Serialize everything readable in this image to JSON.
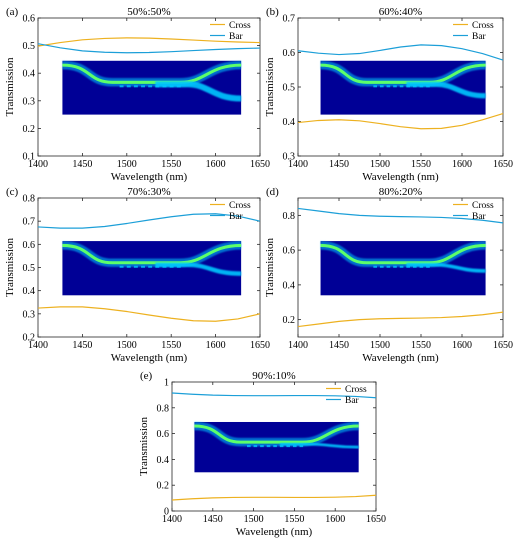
{
  "colors": {
    "cross": "#edb120",
    "bar": "#1c9fd8",
    "inset_bg": "#000096",
    "inset_mid": "#00c8ff",
    "inset_core": "#5cff6a"
  },
  "chart_data": [
    {
      "panel": "(a)",
      "title": "50%:50%",
      "type": "line",
      "xlabel": "Wavelength (nm)",
      "ylabel": "Transmission",
      "xlim": [
        1400,
        1650
      ],
      "ylim": [
        0.1,
        0.6
      ],
      "xticks": [
        1400,
        1450,
        1500,
        1550,
        1600,
        1650
      ],
      "yticks": [
        0.1,
        0.2,
        0.3,
        0.4,
        0.5,
        0.6
      ],
      "legend_position": "top-right",
      "grid": false,
      "x": [
        1400,
        1425,
        1450,
        1475,
        1500,
        1525,
        1550,
        1575,
        1600,
        1625,
        1650
      ],
      "series": [
        {
          "name": "Cross",
          "color_key": "cross",
          "values": [
            0.498,
            0.511,
            0.521,
            0.526,
            0.528,
            0.527,
            0.524,
            0.52,
            0.516,
            0.513,
            0.511
          ]
        },
        {
          "name": "Bar",
          "color_key": "bar",
          "values": [
            0.507,
            0.492,
            0.481,
            0.476,
            0.474,
            0.475,
            0.478,
            0.482,
            0.486,
            0.489,
            0.491
          ]
        }
      ],
      "inset": {
        "split": 0.5
      }
    },
    {
      "panel": "(b)",
      "title": "60%:40%",
      "type": "line",
      "xlabel": "Wavelength (nm)",
      "ylabel": "Transmission",
      "xlim": [
        1400,
        1650
      ],
      "ylim": [
        0.3,
        0.7
      ],
      "xticks": [
        1400,
        1450,
        1500,
        1550,
        1600,
        1650
      ],
      "yticks": [
        0.3,
        0.4,
        0.5,
        0.6,
        0.7
      ],
      "legend_position": "top-right",
      "grid": false,
      "x": [
        1400,
        1425,
        1450,
        1475,
        1500,
        1525,
        1550,
        1575,
        1600,
        1625,
        1650
      ],
      "series": [
        {
          "name": "Cross",
          "color_key": "cross",
          "values": [
            0.397,
            0.403,
            0.405,
            0.402,
            0.394,
            0.385,
            0.379,
            0.38,
            0.389,
            0.405,
            0.423
          ]
        },
        {
          "name": "Bar",
          "color_key": "bar",
          "values": [
            0.605,
            0.598,
            0.594,
            0.597,
            0.606,
            0.616,
            0.622,
            0.62,
            0.611,
            0.597,
            0.578
          ]
        }
      ],
      "inset": {
        "split": 0.6
      }
    },
    {
      "panel": "(c)",
      "title": "70%:30%",
      "type": "line",
      "xlabel": "Wavelength (nm)",
      "ylabel": "Transmission",
      "xlim": [
        1400,
        1650
      ],
      "ylim": [
        0.2,
        0.8
      ],
      "xticks": [
        1400,
        1450,
        1500,
        1550,
        1600,
        1650
      ],
      "yticks": [
        0.2,
        0.3,
        0.4,
        0.5,
        0.6,
        0.7,
        0.8
      ],
      "legend_position": "top-right",
      "grid": false,
      "x": [
        1400,
        1425,
        1450,
        1475,
        1500,
        1525,
        1550,
        1575,
        1600,
        1625,
        1650
      ],
      "series": [
        {
          "name": "Cross",
          "color_key": "cross",
          "values": [
            0.325,
            0.33,
            0.33,
            0.322,
            0.31,
            0.295,
            0.281,
            0.27,
            0.268,
            0.278,
            0.3
          ]
        },
        {
          "name": "Bar",
          "color_key": "bar",
          "values": [
            0.675,
            0.67,
            0.67,
            0.677,
            0.69,
            0.705,
            0.719,
            0.73,
            0.732,
            0.722,
            0.7
          ]
        }
      ],
      "inset": {
        "split": 0.7
      }
    },
    {
      "panel": "(d)",
      "title": "80%:20%",
      "type": "line",
      "xlabel": "Wavelength (nm)",
      "ylabel": "Transmission",
      "xlim": [
        1400,
        1650
      ],
      "ylim": [
        0.1,
        0.9
      ],
      "xticks": [
        1400,
        1450,
        1500,
        1550,
        1600,
        1650
      ],
      "yticks": [
        0.2,
        0.4,
        0.6,
        0.8
      ],
      "legend_position": "top-right",
      "grid": false,
      "x": [
        1400,
        1425,
        1450,
        1475,
        1500,
        1525,
        1550,
        1575,
        1600,
        1625,
        1650
      ],
      "series": [
        {
          "name": "Cross",
          "color_key": "cross",
          "values": [
            0.16,
            0.175,
            0.19,
            0.2,
            0.205,
            0.207,
            0.209,
            0.212,
            0.218,
            0.228,
            0.243
          ]
        },
        {
          "name": "Bar",
          "color_key": "bar",
          "values": [
            0.84,
            0.825,
            0.81,
            0.8,
            0.795,
            0.793,
            0.791,
            0.788,
            0.782,
            0.772,
            0.757
          ]
        }
      ],
      "inset": {
        "split": 0.8
      }
    },
    {
      "panel": "(e)",
      "title": "90%:10%",
      "type": "line",
      "xlabel": "Wavelength (nm)",
      "ylabel": "Transmission",
      "xlim": [
        1400,
        1650
      ],
      "ylim": [
        0,
        1
      ],
      "xticks": [
        1400,
        1450,
        1500,
        1550,
        1600,
        1650
      ],
      "yticks": [
        0,
        0.2,
        0.4,
        0.6,
        0.8,
        1
      ],
      "legend_position": "top-right",
      "grid": false,
      "x": [
        1400,
        1425,
        1450,
        1475,
        1500,
        1525,
        1550,
        1575,
        1600,
        1625,
        1650
      ],
      "series": [
        {
          "name": "Cross",
          "color_key": "cross",
          "values": [
            0.085,
            0.095,
            0.102,
            0.105,
            0.106,
            0.106,
            0.105,
            0.105,
            0.107,
            0.112,
            0.122
          ]
        },
        {
          "name": "Bar",
          "color_key": "bar",
          "values": [
            0.915,
            0.905,
            0.898,
            0.895,
            0.894,
            0.894,
            0.895,
            0.895,
            0.893,
            0.888,
            0.878
          ]
        }
      ],
      "inset": {
        "split": 0.9
      }
    }
  ]
}
